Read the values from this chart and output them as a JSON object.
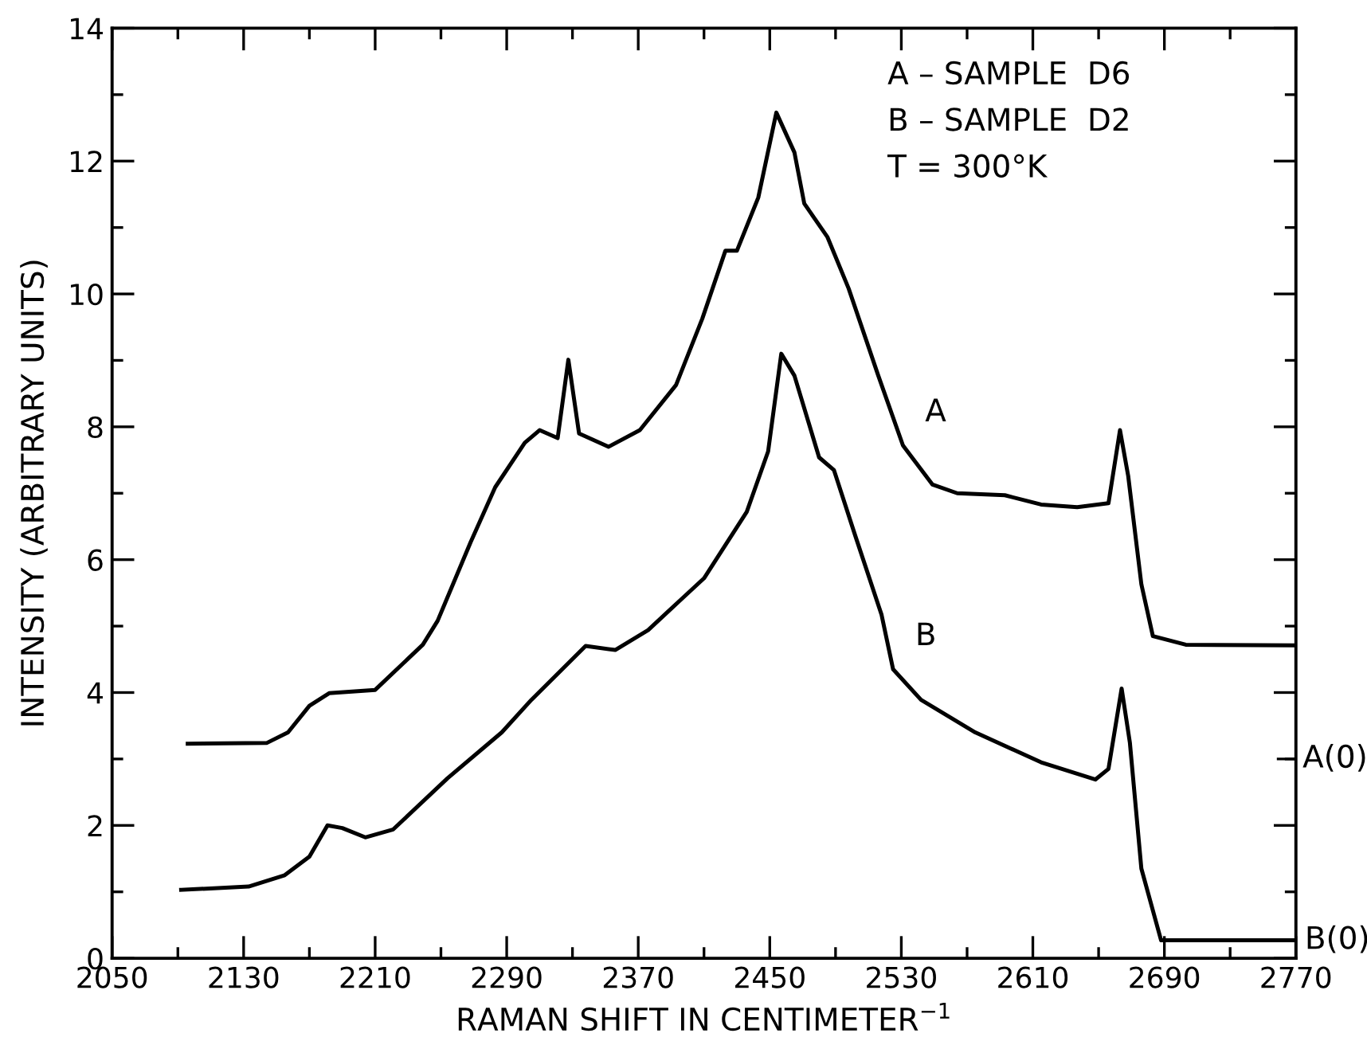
{
  "chart_data": {
    "type": "line",
    "xlabel": "RAMAN SHIFT IN CENTIMETER$^{−1}$",
    "ylabel": "INTENSITY (ARBITRARY UNITS)",
    "xlim": [
      2050,
      2770
    ],
    "ylim": [
      0,
      14
    ],
    "xticks": [
      2050,
      {
        "value": 2090,
        "label": null
      },
      2130,
      {
        "value": 2170,
        "label": null
      },
      2210,
      {
        "value": 2250,
        "label": null
      },
      2290,
      {
        "value": 2330,
        "label": null
      },
      2370,
      {
        "value": 2410,
        "label": null
      },
      2450,
      {
        "value": 2490,
        "label": null
      },
      2530,
      {
        "value": 2570,
        "label": null
      },
      2610,
      {
        "value": 2650,
        "label": null
      },
      2690,
      {
        "value": 2730,
        "label": null
      },
      2770
    ],
    "yticks": [
      0,
      {
        "value": 1,
        "label": null
      },
      2,
      {
        "value": 3,
        "label": null
      },
      4,
      {
        "value": 5,
        "label": null
      },
      6,
      {
        "value": 7,
        "label": null
      },
      8,
      {
        "value": 9,
        "label": null
      },
      10,
      {
        "value": 11,
        "label": null
      },
      12,
      {
        "value": 13,
        "label": null
      },
      14
    ],
    "grid": false,
    "legend": false,
    "marker": "none",
    "line_style": "solid",
    "series": [
      {
        "name": "A",
        "color": "#000000",
        "x": [
          2096,
          2144,
          2157,
          2170,
          2182,
          2210,
          2239,
          2248,
          2268,
          2283,
          2301,
          2310,
          2321,
          2327.5,
          2334,
          2352,
          2371,
          2393,
          2409,
          2423,
          2430,
          2443,
          2454,
          2465,
          2471,
          2485,
          2498,
          2516,
          2531,
          2549,
          2564,
          2593,
          2615,
          2637,
          2656,
          2663,
          2668,
          2676,
          2683,
          2703,
          2770
        ],
        "values": [
          3.23,
          3.24,
          3.4,
          3.8,
          3.99,
          4.04,
          4.72,
          5.08,
          6.26,
          7.09,
          7.76,
          7.95,
          7.83,
          9.01,
          7.9,
          7.7,
          7.95,
          8.63,
          9.63,
          10.65,
          10.65,
          11.45,
          12.73,
          12.13,
          11.36,
          10.86,
          10.08,
          8.77,
          7.72,
          7.13,
          7.0,
          6.97,
          6.83,
          6.79,
          6.85,
          7.95,
          7.26,
          5.63,
          4.85,
          4.72,
          4.71
        ]
      },
      {
        "name": "B",
        "color": "#000000",
        "x": [
          2092,
          2133,
          2155,
          2170,
          2181,
          2190,
          2204,
          2221,
          2254,
          2287,
          2305,
          2338,
          2356,
          2376,
          2396,
          2410,
          2436,
          2449,
          2457,
          2465,
          2480,
          2489,
          2502,
          2518,
          2525,
          2542,
          2575,
          2615,
          2648,
          2656,
          2664,
          2669,
          2676,
          2688,
          2770
        ],
        "values": [
          1.03,
          1.08,
          1.25,
          1.53,
          2.0,
          1.96,
          1.82,
          1.94,
          2.71,
          3.4,
          3.89,
          4.7,
          4.64,
          4.94,
          5.4,
          5.72,
          6.72,
          7.63,
          9.1,
          8.77,
          7.54,
          7.35,
          6.36,
          5.17,
          4.35,
          3.89,
          3.4,
          2.95,
          2.69,
          2.85,
          4.06,
          3.25,
          1.35,
          0.27,
          0.27
        ]
      }
    ],
    "ref_lines": [
      {
        "axis": "y",
        "value": 3,
        "label": "A(0)",
        "color": "#000000"
      }
    ],
    "annotations": [
      {
        "text": "B(0)",
        "x": 2770,
        "y": 0.27
      },
      "A – SAMPLE  D6",
      "B – SAMPLE  D2",
      "T = 300°K"
    ]
  }
}
